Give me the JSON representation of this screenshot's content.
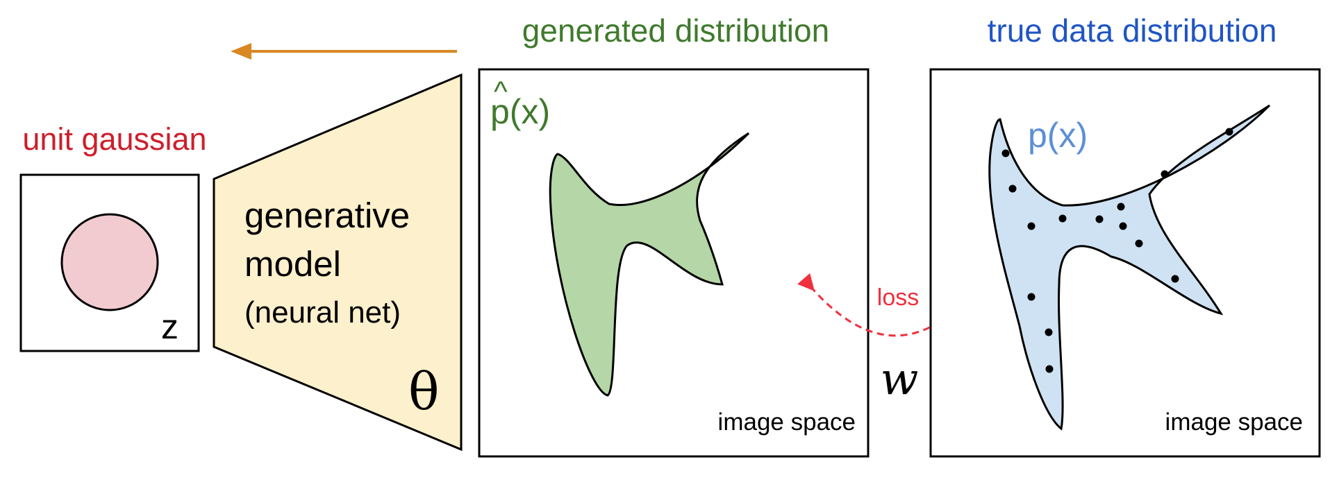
{
  "labels": {
    "unit_gaussian": "unit gaussian",
    "z": "z",
    "model_line1": "generative",
    "model_line2": "model",
    "model_line3": "(neural net)",
    "theta": "θ",
    "generated_distribution": "generated distribution",
    "p_hat_x": "p(x)",
    "hat": "^",
    "image_space_generated": "image space",
    "true_data_distribution": "true data distribution",
    "p_x": "p(x)",
    "image_space_true": "image space",
    "loss": "loss",
    "w": "w"
  },
  "colors": {
    "red": "#cc1f2b",
    "green": "#3f7a2c",
    "blue": "#1f55c4",
    "light_blue_text": "#5b8fd6",
    "orange_arrow": "#d88722",
    "loss_red": "#f0303c",
    "gaussian_fill": "#f2cbd0",
    "model_fill": "#fdf0cc",
    "generated_fill": "#b5d6a7",
    "true_fill": "#cfe2f3"
  }
}
